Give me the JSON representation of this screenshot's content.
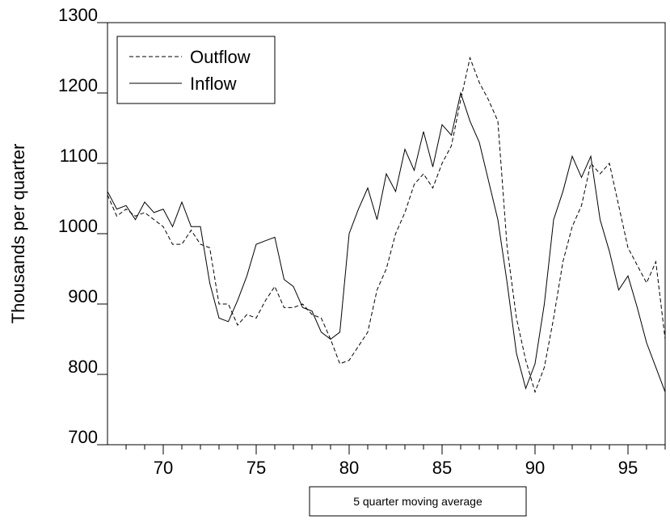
{
  "chart_data": {
    "type": "line",
    "ylabel": "Thousands per quarter",
    "xlabel": "5 quarter moving average",
    "x": [
      67,
      67.5,
      68,
      68.5,
      69,
      69.5,
      70,
      70.5,
      71,
      71.5,
      72,
      72.5,
      73,
      73.5,
      74,
      74.5,
      75,
      75.5,
      76,
      76.5,
      77,
      77.5,
      78,
      78.5,
      79,
      79.5,
      80,
      80.5,
      81,
      81.5,
      82,
      82.5,
      83,
      83.5,
      84,
      84.5,
      85,
      85.5,
      86,
      86.5,
      87,
      87.5,
      88,
      88.5,
      89,
      89.5,
      90,
      90.5,
      91,
      91.5,
      92,
      92.5,
      93,
      93.5,
      94,
      94.5,
      95,
      95.5,
      96,
      96.5,
      97
    ],
    "series": [
      {
        "name": "Outflow",
        "color": "#000000",
        "dash": true,
        "values": [
          1055,
          1025,
          1035,
          1025,
          1030,
          1020,
          1010,
          985,
          985,
          1005,
          985,
          980,
          900,
          900,
          870,
          885,
          880,
          905,
          925,
          895,
          895,
          900,
          885,
          880,
          850,
          815,
          820,
          840,
          860,
          920,
          950,
          1000,
          1030,
          1070,
          1085,
          1065,
          1100,
          1125,
          1190,
          1250,
          1215,
          1190,
          1160,
          980,
          880,
          820,
          775,
          810,
          880,
          960,
          1010,
          1040,
          1100,
          1085,
          1100,
          1040,
          980,
          955,
          930,
          960,
          850
        ]
      },
      {
        "name": "Inflow",
        "color": "#000000",
        "dash": false,
        "values": [
          1060,
          1035,
          1040,
          1020,
          1045,
          1030,
          1035,
          1010,
          1045,
          1010,
          1010,
          930,
          880,
          875,
          905,
          940,
          985,
          990,
          995,
          935,
          925,
          895,
          890,
          860,
          850,
          860,
          1000,
          1035,
          1065,
          1020,
          1085,
          1060,
          1120,
          1090,
          1145,
          1095,
          1155,
          1140,
          1200,
          1160,
          1130,
          1075,
          1020,
          930,
          830,
          780,
          815,
          900,
          1020,
          1060,
          1110,
          1080,
          1110,
          1020,
          975,
          920,
          940,
          895,
          845,
          810,
          775
        ]
      }
    ],
    "xlim": [
      67,
      97
    ],
    "xticks": [
      70,
      75,
      80,
      85,
      90,
      95
    ],
    "x_minor_ticks": [
      68,
      69,
      71,
      72,
      73,
      74,
      76,
      77,
      78,
      79,
      81,
      82,
      83,
      84,
      86,
      87,
      88,
      89,
      91,
      92,
      93,
      94,
      96,
      97
    ],
    "ylim": [
      700,
      1300
    ],
    "yticks": [
      700,
      800,
      900,
      1000,
      1100,
      1200,
      1300
    ],
    "legend": "top-left",
    "grid": false
  }
}
